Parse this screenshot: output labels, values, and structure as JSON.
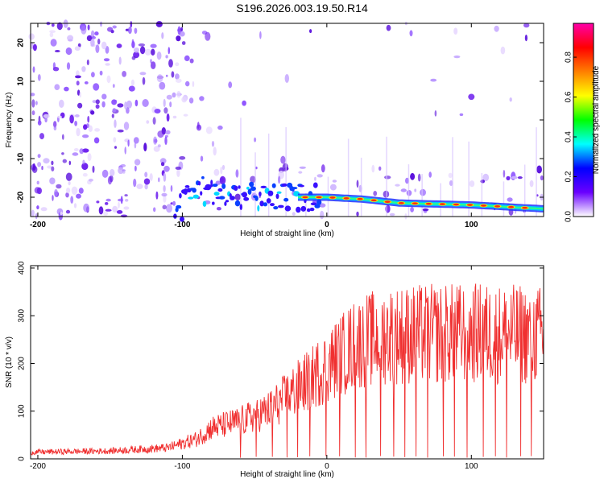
{
  "chart_data": [
    {
      "type": "heatmap",
      "title": "S196.2026.003.19.50.R14",
      "xlabel": "Height of straight line (km)",
      "ylabel": "Frequency (Hz)",
      "xlim": [
        -205,
        150
      ],
      "ylim": [
        -25,
        25
      ],
      "x_ticks": [
        -200,
        -100,
        0,
        100
      ],
      "y_ticks": [
        20,
        10,
        0,
        -10,
        -20
      ],
      "colorbar": {
        "label": "Normalized spectral amplitude",
        "range": [
          0,
          0.97
        ],
        "ticks": [
          "0.0",
          "0.2",
          "0.4",
          "0.6",
          "0.8"
        ],
        "tick_values": [
          0.0,
          0.2,
          0.4,
          0.6,
          0.8
        ],
        "colors": [
          "#ffffff",
          "#6a00ff",
          "#0000ff",
          "#00ffff",
          "#00ff00",
          "#ffff00",
          "#ff7f00",
          "#ff0000",
          "#ff00aa"
        ]
      },
      "tone_track": [
        {
          "x": -100,
          "y": -18
        },
        {
          "x": -50,
          "y": -19.5
        },
        {
          "x": -25,
          "y": -20
        },
        {
          "x": 0,
          "y": -20
        },
        {
          "x": 25,
          "y": -20.5
        },
        {
          "x": 50,
          "y": -21.5
        },
        {
          "x": 100,
          "y": -22
        },
        {
          "x": 150,
          "y": -23
        }
      ],
      "grid": false
    },
    {
      "type": "line",
      "xlabel": "Height of straight line (km)",
      "ylabel": "SNR (10 * v/v)",
      "xlim": [
        -205,
        150
      ],
      "ylim": [
        0,
        405
      ],
      "x_ticks": [
        -200,
        -100,
        0,
        100
      ],
      "y_ticks": [
        0,
        100,
        200,
        300,
        400
      ],
      "series_color": "#f03030",
      "envelope": [
        {
          "x": -205,
          "y": 15
        },
        {
          "x": -150,
          "y": 18
        },
        {
          "x": -110,
          "y": 25
        },
        {
          "x": -90,
          "y": 45
        },
        {
          "x": -80,
          "y": 70
        },
        {
          "x": -60,
          "y": 85
        },
        {
          "x": -40,
          "y": 110
        },
        {
          "x": -20,
          "y": 160
        },
        {
          "x": 0,
          "y": 210
        },
        {
          "x": 20,
          "y": 260
        },
        {
          "x": 40,
          "y": 280
        },
        {
          "x": 100,
          "y": 285
        },
        {
          "x": 150,
          "y": 280
        }
      ],
      "grid": false
    }
  ]
}
